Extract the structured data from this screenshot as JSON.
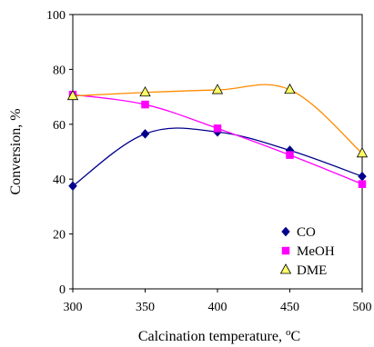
{
  "chart_data": {
    "type": "line",
    "xlabel": "Calcination temperature, ",
    "xlabel_unit_sup": "o",
    "xlabel_unit": "C",
    "ylabel": "Conversion, %",
    "xlim": [
      300,
      500
    ],
    "ylim": [
      0,
      100
    ],
    "x_ticks": [
      300,
      350,
      400,
      450,
      500
    ],
    "y_ticks": [
      0,
      20,
      40,
      60,
      80,
      100
    ],
    "grid": false,
    "legend_position": "bottom-right",
    "x": [
      300,
      350,
      400,
      450,
      500
    ],
    "series": [
      {
        "name": "CO",
        "values": [
          37.5,
          56.5,
          57.2,
          50.5,
          41.0
        ],
        "color": "#00008B",
        "marker": "diamond"
      },
      {
        "name": "MeOH",
        "values": [
          70.8,
          67.2,
          58.5,
          48.8,
          38.2
        ],
        "color": "#FF00FF",
        "marker": "square"
      },
      {
        "name": "DME",
        "values": [
          70.3,
          71.6,
          72.5,
          72.6,
          49.4
        ],
        "color": "#FF8C00",
        "marker": "triangle",
        "marker_fill": "#FFFF66"
      }
    ]
  }
}
